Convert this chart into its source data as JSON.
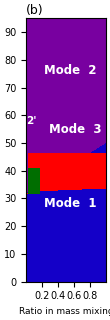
{
  "title": "(b)",
  "ylabel": "",
  "xlabel": "Ratio in mass mixing",
  "ylim": [
    0,
    95
  ],
  "xlim": [
    0,
    1.0
  ],
  "yticks": [
    0,
    10,
    20,
    30,
    40,
    50,
    60,
    70,
    80,
    90
  ],
  "xticks": [
    0.2,
    0.4,
    0.6,
    0.8
  ],
  "mode1_color": [
    120,
    0,
    160
  ],
  "mode2_color": [
    20,
    0,
    200
  ],
  "mode3_color": [
    255,
    0,
    0
  ],
  "mode2prime_color": [
    0,
    110,
    0
  ],
  "bg_color": "#ffffff",
  "text_color": "#ffffff",
  "mode1_label": "Mode  1",
  "mode2_label": "Mode  2",
  "mode3_label": "Mode  3",
  "mode2prime_label": "2'",
  "figsize": [
    1.1,
    3.2
  ],
  "dpi": 100
}
